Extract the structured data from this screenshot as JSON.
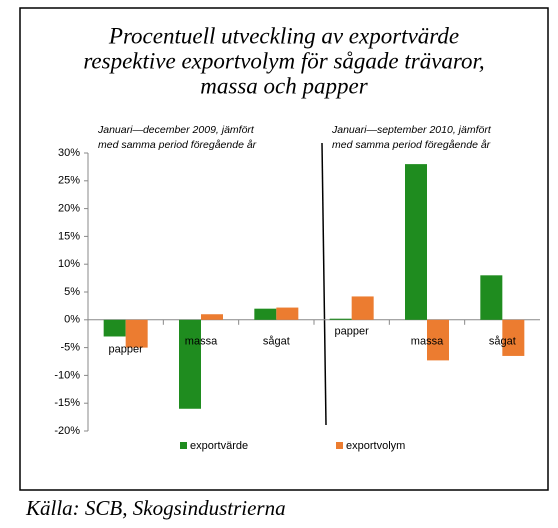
{
  "chart_data": {
    "type": "bar",
    "title": [
      "Procentuell utveckling av exportvärde",
      "respektive exportvolym för sågade trävaror,",
      "massa och papper"
    ],
    "annotations": [
      [
        "Januari—december 2009, jämfört",
        "med samma period föregående år"
      ],
      [
        "Januari—september 2010, jämfört",
        "med samma period föregående år"
      ]
    ],
    "source": "Källa: SCB, Skogsindustrierna",
    "categories": [
      "papper",
      "massa",
      "sågat",
      "papper",
      "massa",
      "sågat"
    ],
    "series": [
      {
        "name": "exportvärde",
        "color": "#1f8c1f",
        "values": [
          -3,
          -16,
          2,
          0.2,
          28,
          8
        ]
      },
      {
        "name": "exportvolym",
        "color": "#ec7c30",
        "values": [
          -5,
          1,
          2.2,
          4.2,
          -7.3,
          -6.5
        ]
      }
    ],
    "ylim": [
      -20,
      30
    ],
    "yticks": [
      {
        "value": -20,
        "label": "-20%"
      },
      {
        "value": -15,
        "label": "-15%"
      },
      {
        "value": -10,
        "label": "-10%"
      },
      {
        "value": -5,
        "label": "-5%"
      },
      {
        "value": 0,
        "label": "0%"
      },
      {
        "value": 5,
        "label": "5%"
      },
      {
        "value": 10,
        "label": "10%"
      },
      {
        "value": 15,
        "label": "15%"
      },
      {
        "value": 20,
        "label": "20%"
      },
      {
        "value": 25,
        "label": "25%"
      },
      {
        "value": 30,
        "label": "30%"
      }
    ],
    "grid": false,
    "legend": "bottom"
  }
}
